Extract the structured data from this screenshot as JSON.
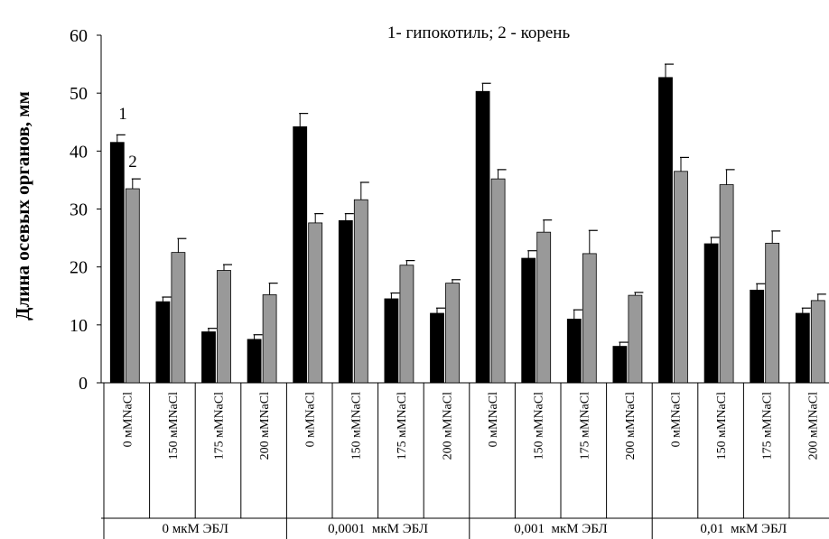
{
  "chart_data": {
    "type": "bar",
    "title": "1- гипокотиль; 2 - корень",
    "ylabel": "Длина осевых органов, мм",
    "xlabel": "",
    "ylim": [
      0,
      60
    ],
    "yticks": [
      0,
      10,
      20,
      30,
      40,
      50,
      60
    ],
    "grid": false,
    "categories": [
      "0 мМNaCl",
      "150 мМNaCl",
      "175 мМNaCl",
      "200 мМNaCl",
      "0 мМNaCl",
      "150 мМNaCl",
      "175 мМNaCl",
      "200 мМNaCl",
      "0 мМNaCl",
      "150 мМNaCl",
      "175 мМNaCl",
      "200 мМNaCl",
      "0 мМNaCl",
      "150 мМNaCl",
      "175 мМNaCl",
      "200 мМNaCl"
    ],
    "groups": [
      {
        "label": "0 мкМ ЭБЛ",
        "span": 4
      },
      {
        "label": "0,0001  мкМ ЭБЛ",
        "span": 4
      },
      {
        "label": "0,001  мкМ ЭБЛ",
        "span": 4
      },
      {
        "label": "0,01  мкМ ЭБЛ",
        "span": 4
      }
    ],
    "series": [
      {
        "name": "1",
        "color": "#000000",
        "values": [
          41.5,
          14,
          8.8,
          7.5,
          44.2,
          28,
          14.5,
          12,
          50.3,
          21.5,
          11,
          6.3,
          52.7,
          24,
          16,
          12
        ],
        "errors": [
          1.3,
          0.8,
          0.6,
          0.8,
          2.3,
          1.2,
          1.0,
          0.9,
          1.4,
          1.3,
          1.6,
          0.7,
          2.3,
          1.1,
          1.1,
          0.9
        ]
      },
      {
        "name": "2",
        "color": "#999999",
        "values": [
          33.5,
          22.5,
          19.4,
          15.2,
          27.6,
          31.6,
          20.3,
          17.2,
          35.2,
          26,
          22.3,
          15.1,
          36.5,
          34.2,
          24.1,
          14.2
        ],
        "errors": [
          1.7,
          2.4,
          1.0,
          2.0,
          1.6,
          3.0,
          0.8,
          0.6,
          1.6,
          2.1,
          4.0,
          0.5,
          2.4,
          2.6,
          2.1,
          1.1
        ]
      }
    ],
    "annotations": [
      "1",
      "2"
    ]
  }
}
